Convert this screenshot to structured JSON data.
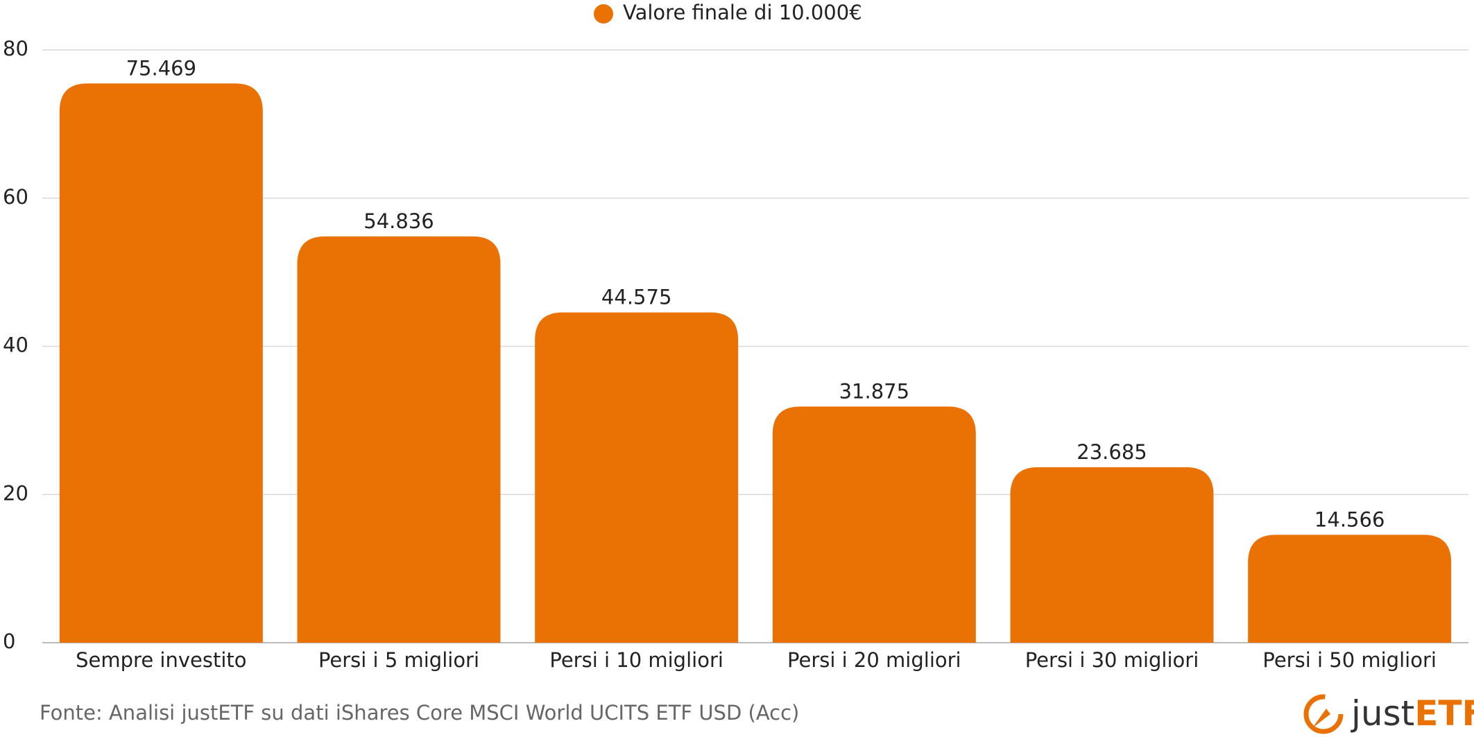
{
  "chart_data": {
    "type": "bar",
    "legend": "Valore finale di 10.000€",
    "categories": [
      "Sempre investito",
      "Persi i 5 migliori",
      "Persi i 10 migliori",
      "Persi i 20 migliori",
      "Persi i 30 migliori",
      "Persi i 50 migliori"
    ],
    "values": [
      75.469,
      54.836,
      44.575,
      31.875,
      23.685,
      14.566
    ],
    "color": "#ea7204",
    "ylim": [
      0,
      80
    ],
    "yticks": [
      0,
      20,
      40,
      60,
      80
    ],
    "grid": true
  },
  "footer": {
    "source": "Fonte: Analisi justETF su dati iShares Core MSCI World UCITS ETF USD (Acc)",
    "logo": {
      "first": "just",
      "second": "ETF"
    }
  }
}
